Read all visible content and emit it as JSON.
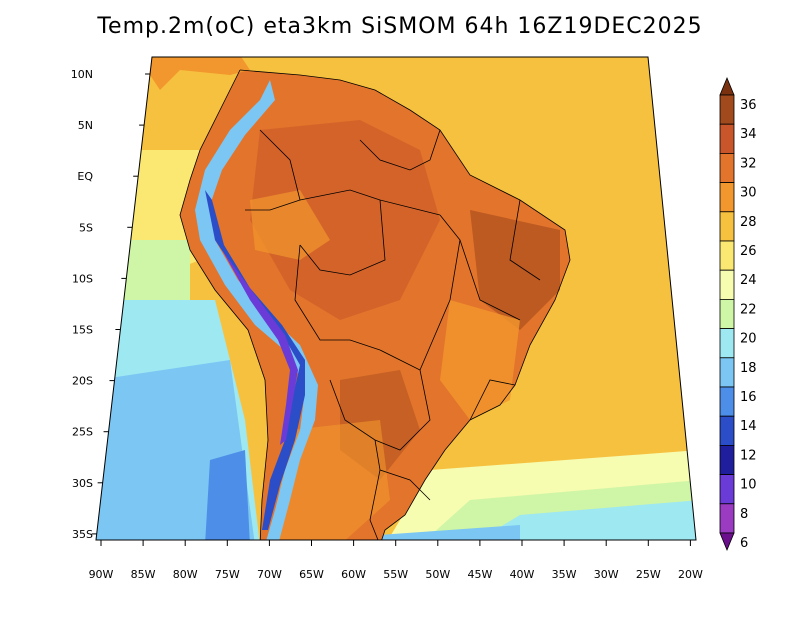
{
  "title": "Temp.2m(oC) eta3km SiSMOM 64h 16Z19DEC2025",
  "lat_ticks": [
    "10N",
    "5N",
    "EQ",
    "5S",
    "10S",
    "15S",
    "20S",
    "25S",
    "30S",
    "35S"
  ],
  "lon_ticks": [
    "90W",
    "85W",
    "80W",
    "75W",
    "70W",
    "65W",
    "60W",
    "55W",
    "50W",
    "45W",
    "40W",
    "35W",
    "30W",
    "25W",
    "20W"
  ],
  "colorbar": {
    "labels": [
      "36",
      "34",
      "32",
      "30",
      "28",
      "26",
      "24",
      "22",
      "20",
      "18",
      "16",
      "14",
      "12",
      "10",
      "8",
      "6"
    ],
    "colors": [
      "#7a3110",
      "#a14a1d",
      "#c9562a",
      "#e3742b",
      "#f2972d",
      "#f7c140",
      "#fae873",
      "#f6fcb0",
      "#cff5a6",
      "#9ee8f2",
      "#7bc6f3",
      "#4c8ee8",
      "#2b4ec8",
      "#1f1f9e",
      "#6a3bd6",
      "#9a3bc2",
      "#6b0f8c"
    ]
  },
  "colors": {
    "land_hot": "#e3742b",
    "land_warm": "#f2972d",
    "ocean_warm": "#f7c140",
    "ocean_mild": "#fae873",
    "ocean_cool": "#9ee8f2",
    "ocean_cold": "#7bc6f3",
    "andes": "#4c8ee8"
  }
}
